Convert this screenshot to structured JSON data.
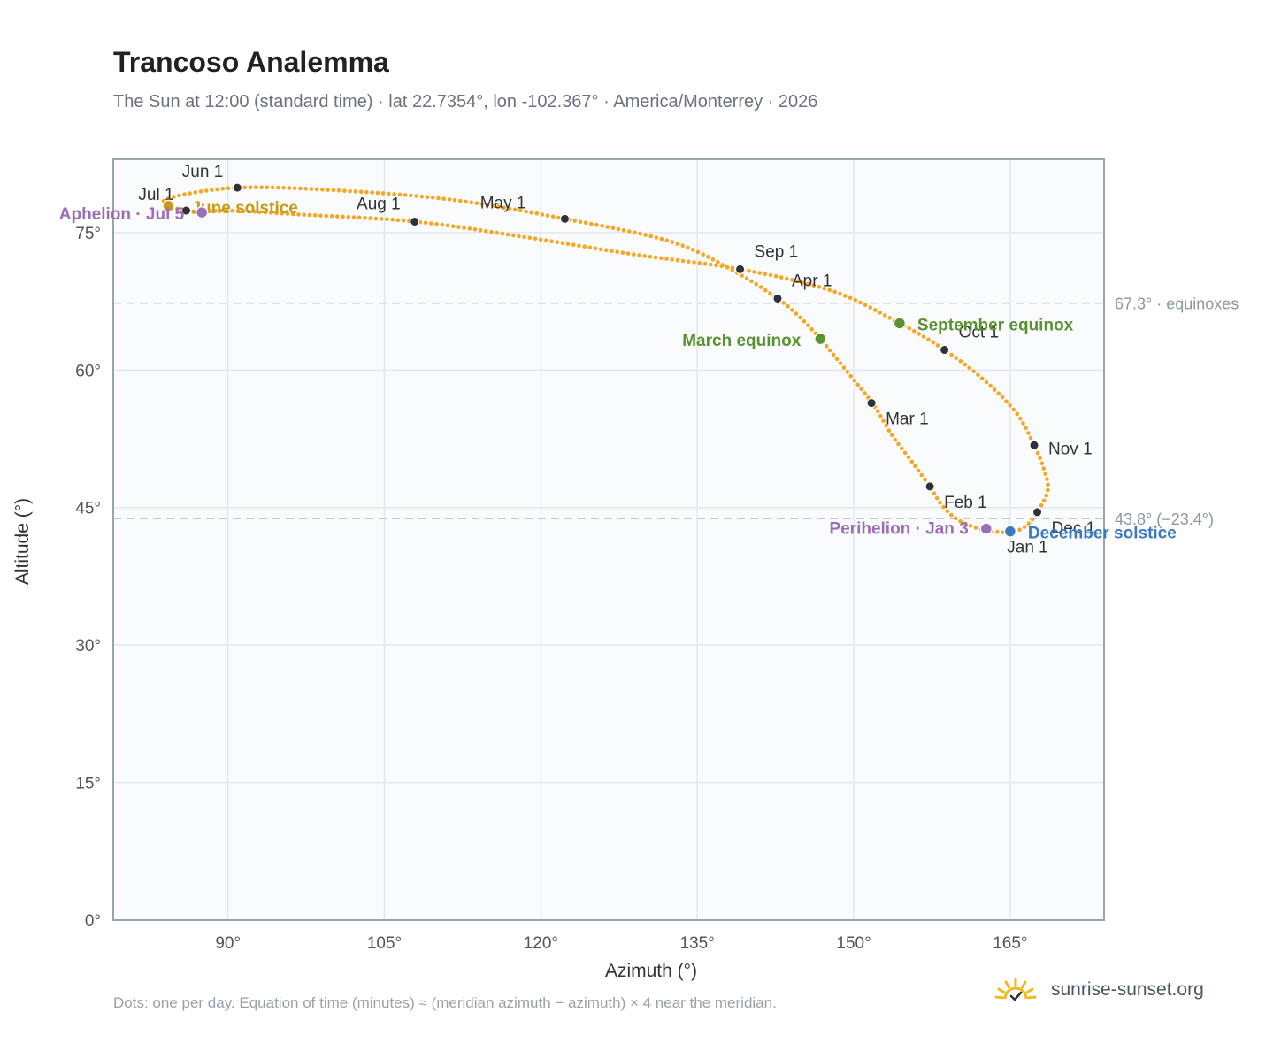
{
  "header": {
    "title": "Trancoso Analemma",
    "subtitle": "The Sun at 12:00 (standard time) · lat 22.7354°, lon -102.367° · America/Monterrey · 2026"
  },
  "footer": {
    "note": "Dots: one per day. Equation of time (minutes) ≈ (meridian azimuth − azimuth) × 4 near the meridian.",
    "brand": "sunrise-sunset.org"
  },
  "colors": {
    "path": "#f5a623",
    "month_marker": "#2d3139",
    "solstice_june": "#c99a12",
    "solstice_december": "#3a78c2",
    "equinox": "#5a9231",
    "apsis": "#9a6fb8",
    "reference_line": "#b8c0cc",
    "plot_background": "#f9fbfd",
    "grid": "#e3e8ef",
    "axis": "#9aa3b0",
    "brand_icon": "#f2b91e"
  },
  "icons": {
    "brand": "sun-check-icon"
  },
  "chart_data": {
    "type": "scatter",
    "title": "Trancoso Analemma",
    "xlabel": "Azimuth (°)",
    "ylabel": "Altitude (°)",
    "xlim": [
      79,
      174
    ],
    "ylim": [
      0,
      83
    ],
    "xticks": [
      90,
      105,
      120,
      135,
      150,
      165
    ],
    "yticks": [
      0,
      15,
      30,
      45,
      60,
      75
    ],
    "xtick_labels": [
      "90°",
      "105°",
      "120°",
      "135°",
      "150°",
      "165°"
    ],
    "ytick_labels": [
      "0°",
      "15°",
      "30°",
      "45°",
      "60°",
      "75°"
    ],
    "grid": true,
    "path_points": [
      [
        164.3,
        42.3
      ],
      [
        162.0,
        42.7
      ],
      [
        159.8,
        43.8
      ],
      [
        158.3,
        45.5
      ],
      [
        157.3,
        47.3
      ],
      [
        155.5,
        50.1
      ],
      [
        153.6,
        53.0
      ],
      [
        151.9,
        56.2
      ],
      [
        149.6,
        59.5
      ],
      [
        146.8,
        63.4
      ],
      [
        144.8,
        65.8
      ],
      [
        142.7,
        67.8
      ],
      [
        138.5,
        70.8
      ],
      [
        132.5,
        74.0
      ],
      [
        122.3,
        76.5
      ],
      [
        112.0,
        78.5
      ],
      [
        102.0,
        79.5
      ],
      [
        91.0,
        79.9
      ],
      [
        84.0,
        78.6
      ],
      [
        86.2,
        77.3
      ],
      [
        90.0,
        77.4
      ],
      [
        96.5,
        77.0
      ],
      [
        107.9,
        76.2
      ],
      [
        118.5,
        74.5
      ],
      [
        129.0,
        72.6
      ],
      [
        139.1,
        71.0
      ],
      [
        148.0,
        68.6
      ],
      [
        154.4,
        65.1
      ],
      [
        158.7,
        62.2
      ],
      [
        162.5,
        58.9
      ],
      [
        165.6,
        55.3
      ],
      [
        167.3,
        51.8
      ],
      [
        168.2,
        49.3
      ],
      [
        168.6,
        46.9
      ],
      [
        167.6,
        44.5
      ],
      [
        166.5,
        43.0
      ],
      [
        165.1,
        42.4
      ],
      [
        164.3,
        42.3
      ]
    ],
    "month_markers": [
      {
        "label": "Jan 1",
        "az": 165.2,
        "alt": 42.4
      },
      {
        "label": "Feb 1",
        "az": 157.3,
        "alt": 47.3
      },
      {
        "label": "Mar 1",
        "az": 151.7,
        "alt": 56.4
      },
      {
        "label": "Apr 1",
        "az": 142.7,
        "alt": 67.8
      },
      {
        "label": "May 1",
        "az": 122.3,
        "alt": 76.5
      },
      {
        "label": "Jun 1",
        "az": 90.9,
        "alt": 79.9
      },
      {
        "label": "Jul 1",
        "az": 86.0,
        "alt": 77.4
      },
      {
        "label": "Aug 1",
        "az": 107.9,
        "alt": 76.2
      },
      {
        "label": "Sep 1",
        "az": 139.1,
        "alt": 71.0
      },
      {
        "label": "Oct 1",
        "az": 158.7,
        "alt": 62.2
      },
      {
        "label": "Nov 1",
        "az": 167.3,
        "alt": 51.8
      },
      {
        "label": "Dec 1",
        "az": 167.6,
        "alt": 44.5
      }
    ],
    "events": [
      {
        "label": "June solstice",
        "az": 84.3,
        "alt": 77.9,
        "kind": "solstice_june"
      },
      {
        "label": "Aphelion · Jul 5",
        "az": 87.5,
        "alt": 77.2,
        "kind": "apsis"
      },
      {
        "label": "March equinox",
        "az": 146.8,
        "alt": 63.4,
        "kind": "equinox"
      },
      {
        "label": "September equinox",
        "az": 154.4,
        "alt": 65.1,
        "kind": "equinox"
      },
      {
        "label": "Perihelion · Jan 3",
        "az": 162.7,
        "alt": 42.7,
        "kind": "apsis"
      },
      {
        "label": "December solstice",
        "az": 165.0,
        "alt": 42.4,
        "kind": "solstice_december"
      }
    ],
    "reference_lines": [
      {
        "alt": 67.3,
        "label": "67.3° · equinoxes"
      },
      {
        "alt": 43.8,
        "label": "43.8° (−23.4°)"
      }
    ]
  }
}
